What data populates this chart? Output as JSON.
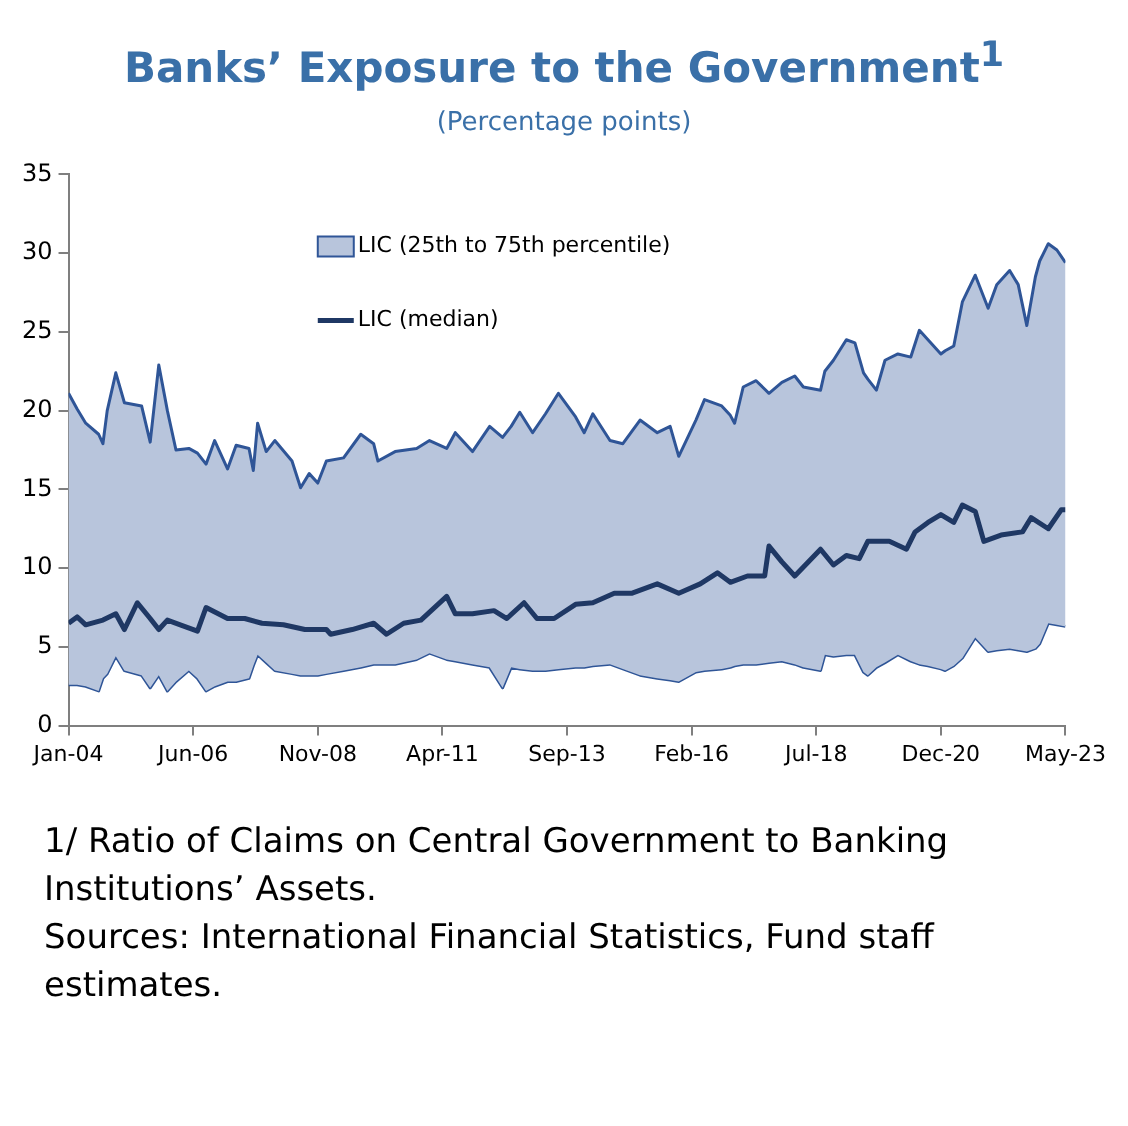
{
  "chart_data": {
    "type": "line",
    "title": "Banks’ Exposure to the Government$^{1}$",
    "subtitle": "(Percentage points)",
    "annotations": [
      "1/ Ratio of Claims on Central Government to Banking Institutions’ Assets.",
      "Sources: International Financial Statistics, Fund staff estimates."
    ],
    "series": [
      {
        "name": "LIC (25th to 75th percentile)",
        "type": "area",
        "color": "#2f5597",
        "x": [
          "2004-01",
          "2004-03",
          "2004-05",
          "2004-08",
          "2004-09",
          "2004-10",
          "2004-12",
          "2005-02",
          "2005-06",
          "2005-08",
          "2005-10",
          "2005-12",
          "2006-02",
          "2006-05",
          "2006-07",
          "2006-09",
          "2006-11",
          "2007-02",
          "2007-04",
          "2007-07",
          "2007-08",
          "2007-09",
          "2007-11",
          "2008-01",
          "2008-05",
          "2008-07",
          "2008-09",
          "2008-11",
          "2009-01",
          "2009-05",
          "2009-09",
          "2009-12",
          "2010-01",
          "2010-05",
          "2010-10",
          "2011-01",
          "2011-05",
          "2011-07",
          "2011-11",
          "2012-03",
          "2012-06",
          "2012-08",
          "2012-10",
          "2013-01",
          "2013-04",
          "2013-07",
          "2013-11",
          "2014-01",
          "2014-03",
          "2014-07",
          "2014-10",
          "2015-02",
          "2015-06",
          "2015-09",
          "2015-11",
          "2016-03",
          "2016-05",
          "2016-09",
          "2016-11",
          "2016-12",
          "2017-02",
          "2017-05",
          "2017-08",
          "2017-11",
          "2018-02",
          "2018-04",
          "2018-08",
          "2018-09",
          "2018-11",
          "2019-02",
          "2019-04",
          "2019-06",
          "2019-07",
          "2019-09",
          "2019-11",
          "2020-02",
          "2020-05",
          "2020-07",
          "2020-09",
          "2020-12",
          "2021-01",
          "2021-03",
          "2021-05",
          "2021-08",
          "2021-11",
          "2022-01",
          "2022-04",
          "2022-06",
          "2022-08",
          "2022-10",
          "2022-11",
          "2023-01",
          "2023-03",
          "2023-05"
        ],
        "values": [
          21.1,
          20.1,
          19.2,
          18.5,
          17.9,
          20.0,
          22.4,
          20.5,
          20.3,
          18.0,
          22.9,
          20.0,
          17.5,
          17.6,
          17.3,
          16.6,
          18.1,
          16.3,
          17.8,
          17.6,
          16.2,
          19.2,
          17.4,
          18.1,
          16.8,
          15.1,
          16.0,
          15.4,
          16.8,
          17.0,
          18.5,
          17.9,
          16.8,
          17.4,
          17.6,
          18.1,
          17.6,
          18.6,
          17.4,
          19.0,
          18.3,
          19.0,
          19.9,
          18.6,
          19.8,
          21.1,
          19.6,
          18.6,
          19.8,
          18.1,
          17.9,
          19.4,
          18.6,
          19.0,
          17.1,
          19.4,
          20.7,
          20.3,
          19.7,
          19.2,
          21.5,
          21.9,
          21.1,
          21.8,
          22.2,
          21.5,
          21.3,
          22.5,
          23.2,
          24.5,
          24.3,
          22.4,
          22.0,
          21.3,
          23.2,
          23.6,
          23.4,
          25.1,
          24.5,
          23.6,
          23.8,
          24.1,
          26.9,
          28.6,
          26.5,
          28.0,
          28.9,
          28.0,
          25.4,
          28.5,
          29.5,
          30.6,
          30.2,
          29.4
        ]
      },
      {
        "type": "line",
        "color": "#2f5597",
        "x": [
          "2004-01",
          "2004-03",
          "2004-05",
          "2004-08",
          "2004-09",
          "2004-10",
          "2004-12",
          "2005-02",
          "2005-06",
          "2005-08",
          "2005-10",
          "2005-12",
          "2006-02",
          "2006-05",
          "2006-07",
          "2006-09",
          "2006-11",
          "2007-02",
          "2007-04",
          "2007-07",
          "2007-08",
          "2007-09",
          "2007-11",
          "2008-01",
          "2008-05",
          "2008-07",
          "2008-09",
          "2008-11",
          "2009-01",
          "2009-05",
          "2009-09",
          "2009-12",
          "2010-01",
          "2010-05",
          "2010-10",
          "2011-01",
          "2011-05",
          "2011-07",
          "2011-11",
          "2012-03",
          "2012-06",
          "2012-08",
          "2012-10",
          "2013-01",
          "2013-04",
          "2013-07",
          "2013-11",
          "2014-01",
          "2014-03",
          "2014-07",
          "2014-10",
          "2015-02",
          "2015-06",
          "2015-09",
          "2015-11",
          "2016-03",
          "2016-05",
          "2016-09",
          "2016-11",
          "2016-12",
          "2017-02",
          "2017-05",
          "2017-08",
          "2017-11",
          "2018-02",
          "2018-04",
          "2018-08",
          "2018-09",
          "2018-11",
          "2019-02",
          "2019-04",
          "2019-06",
          "2019-07",
          "2019-09",
          "2019-11",
          "2020-02",
          "2020-05",
          "2020-07",
          "2020-09",
          "2020-12",
          "2021-01",
          "2021-03",
          "2021-05",
          "2021-08",
          "2021-11",
          "2022-01",
          "2022-04",
          "2022-06",
          "2022-08",
          "2022-10",
          "2022-11",
          "2023-01",
          "2023-03",
          "2023-05"
        ],
        "values": [
          2.6,
          2.6,
          2.5,
          2.2,
          3.0,
          3.3,
          4.4,
          3.5,
          3.2,
          2.4,
          3.2,
          2.2,
          2.8,
          3.5,
          3.0,
          2.2,
          2.5,
          2.8,
          2.8,
          3.0,
          3.8,
          4.5,
          4.0,
          3.5,
          3.3,
          3.2,
          3.2,
          3.2,
          3.3,
          3.5,
          3.7,
          3.9,
          3.9,
          3.9,
          4.2,
          4.6,
          4.2,
          4.1,
          3.9,
          3.7,
          2.4,
          3.7,
          3.6,
          3.5,
          3.5,
          3.6,
          3.7,
          3.7,
          3.8,
          3.9,
          3.6,
          3.2,
          3.0,
          2.9,
          2.8,
          3.4,
          3.5,
          3.6,
          3.7,
          3.8,
          3.9,
          3.9,
          4.0,
          4.1,
          3.9,
          3.7,
          3.5,
          4.5,
          4.4,
          4.5,
          4.5,
          3.4,
          3.2,
          3.7,
          4.0,
          4.5,
          4.1,
          3.9,
          3.8,
          3.6,
          3.5,
          3.8,
          4.3,
          5.6,
          4.7,
          4.8,
          4.9,
          4.8,
          4.7,
          4.9,
          5.2,
          6.5,
          6.4,
          6.3
        ]
      },
      {
        "name": "LIC (median)",
        "type": "line",
        "color": "#1f3864",
        "x": [
          "2004-01",
          "2004-03",
          "2004-05",
          "2004-09",
          "2004-12",
          "2005-02",
          "2005-05",
          "2005-08",
          "2005-10",
          "2005-12",
          "2006-03",
          "2006-07",
          "2006-09",
          "2007-02",
          "2007-06",
          "2007-10",
          "2008-03",
          "2008-08",
          "2009-01",
          "2009-02",
          "2009-07",
          "2009-12",
          "2010-03",
          "2010-07",
          "2010-11",
          "2011-05",
          "2011-07",
          "2011-11",
          "2012-04",
          "2012-07",
          "2012-11",
          "2013-02",
          "2013-06",
          "2013-11",
          "2014-03",
          "2014-08",
          "2014-12",
          "2015-06",
          "2015-11",
          "2016-04",
          "2016-08",
          "2016-11",
          "2017-03",
          "2017-07",
          "2017-08",
          "2017-11",
          "2018-02",
          "2018-08",
          "2018-11",
          "2019-02",
          "2019-05",
          "2019-07",
          "2019-12",
          "2020-04",
          "2020-06",
          "2020-09",
          "2020-12",
          "2021-03",
          "2021-05",
          "2021-08",
          "2021-10",
          "2022-02",
          "2022-07",
          "2022-09",
          "2023-01",
          "2023-04",
          "2023-05"
        ],
        "values": [
          6.5,
          6.9,
          6.4,
          6.7,
          7.1,
          6.1,
          7.8,
          6.8,
          6.1,
          6.7,
          6.4,
          6.0,
          7.5,
          6.8,
          6.8,
          6.5,
          6.4,
          6.1,
          6.1,
          5.8,
          6.1,
          6.5,
          5.8,
          6.5,
          6.7,
          8.2,
          7.1,
          7.1,
          7.3,
          6.8,
          7.8,
          6.8,
          6.8,
          7.7,
          7.8,
          8.4,
          8.4,
          9.0,
          8.4,
          9.0,
          9.7,
          9.1,
          9.5,
          9.5,
          11.4,
          10.4,
          9.5,
          11.2,
          10.2,
          10.8,
          10.6,
          11.7,
          11.7,
          11.2,
          12.3,
          12.9,
          13.4,
          12.9,
          14.0,
          13.6,
          11.7,
          12.1,
          12.3,
          13.2,
          12.5,
          13.7,
          13.7
        ]
      }
    ],
    "xlim": [
      "2004-01",
      "2023-05"
    ],
    "xticks": [
      {
        "value": "2004-01",
        "label": "Jan-04"
      },
      {
        "value": "2006-06",
        "label": "Jun-06"
      },
      {
        "value": "2008-11",
        "label": "Nov-08"
      },
      {
        "value": "2011-04",
        "label": "Apr-11"
      },
      {
        "value": "2013-09",
        "label": "Sep-13"
      },
      {
        "value": "2016-02",
        "label": "Feb-16"
      },
      {
        "value": "2018-07",
        "label": "Jul-18"
      },
      {
        "value": "2020-12",
        "label": "Dec-20"
      },
      {
        "value": "2023-05",
        "label": "May-23"
      }
    ],
    "ylim": [
      0,
      35
    ],
    "yticks": [
      0,
      5,
      10,
      15,
      20,
      25,
      30,
      35
    ],
    "grid": false,
    "legend": "top",
    "marker": "none",
    "line_style": "solid"
  }
}
